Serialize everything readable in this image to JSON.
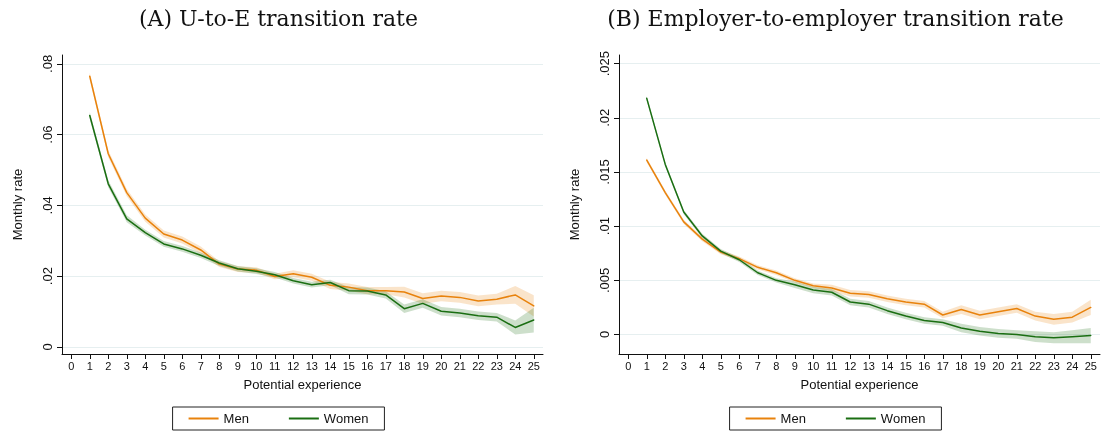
{
  "chart_data": [
    {
      "type": "line",
      "title": "(A) U-to-E transition rate",
      "xlabel": "Potential experience",
      "ylabel": "Monthly rate",
      "x": [
        1,
        2,
        3,
        4,
        5,
        6,
        7,
        8,
        9,
        10,
        11,
        12,
        13,
        14,
        15,
        16,
        17,
        18,
        19,
        20,
        21,
        22,
        23,
        24,
        25
      ],
      "series": [
        {
          "name": "Men",
          "color": "#e8820c",
          "values": [
            0.0765,
            0.0546,
            0.0436,
            0.0364,
            0.0319,
            0.0302,
            0.0274,
            0.0234,
            0.022,
            0.0217,
            0.0199,
            0.0207,
            0.0197,
            0.0174,
            0.0169,
            0.0159,
            0.0159,
            0.0155,
            0.0137,
            0.0144,
            0.014,
            0.013,
            0.0135,
            0.0147,
            0.0116
          ],
          "lower": [
            0.0755,
            0.0536,
            0.0426,
            0.0354,
            0.0309,
            0.0292,
            0.0264,
            0.0226,
            0.0212,
            0.0209,
            0.0191,
            0.0197,
            0.0187,
            0.0164,
            0.0159,
            0.0149,
            0.0149,
            0.014,
            0.0122,
            0.0129,
            0.0125,
            0.0115,
            0.012,
            0.0122,
            0.0086
          ],
          "upper": [
            0.0775,
            0.0556,
            0.0446,
            0.0374,
            0.0329,
            0.0312,
            0.0284,
            0.0242,
            0.0228,
            0.0225,
            0.0207,
            0.0217,
            0.0207,
            0.0184,
            0.0179,
            0.0169,
            0.0169,
            0.017,
            0.0152,
            0.0159,
            0.0155,
            0.0145,
            0.015,
            0.0172,
            0.0146
          ]
        },
        {
          "name": "Women",
          "color": "#1a6e12",
          "values": [
            0.0654,
            0.0461,
            0.0362,
            0.0323,
            0.0291,
            0.0277,
            0.0259,
            0.0237,
            0.0221,
            0.0214,
            0.0204,
            0.0187,
            0.0176,
            0.0182,
            0.0159,
            0.0158,
            0.0147,
            0.0108,
            0.0123,
            0.0101,
            0.0096,
            0.0088,
            0.0084,
            0.0055,
            0.0076
          ],
          "lower": [
            0.0644,
            0.0451,
            0.0352,
            0.0315,
            0.0283,
            0.0269,
            0.0251,
            0.0229,
            0.0213,
            0.0206,
            0.0196,
            0.0179,
            0.0168,
            0.0174,
            0.0149,
            0.0148,
            0.0137,
            0.0096,
            0.0111,
            0.0089,
            0.0084,
            0.0076,
            0.0072,
            0.0035,
            0.0041
          ],
          "upper": [
            0.0664,
            0.0471,
            0.0372,
            0.0331,
            0.0299,
            0.0285,
            0.0267,
            0.0245,
            0.0229,
            0.0222,
            0.0212,
            0.0195,
            0.0184,
            0.019,
            0.0169,
            0.0168,
            0.0157,
            0.012,
            0.0135,
            0.0113,
            0.0108,
            0.01,
            0.0096,
            0.0075,
            0.0111
          ]
        }
      ],
      "xlim": [
        -0.5,
        25.5
      ],
      "xticks": [
        0,
        1,
        2,
        3,
        4,
        5,
        6,
        7,
        8,
        9,
        10,
        11,
        12,
        13,
        14,
        15,
        16,
        17,
        18,
        19,
        20,
        21,
        22,
        23,
        24,
        25
      ],
      "ylim": [
        -0.002,
        0.0825
      ],
      "yticks": [
        0,
        {
          "value": 0.02,
          "label": ".02"
        },
        {
          "value": 0.04,
          "label": ".04"
        },
        {
          "value": 0.06,
          "label": ".06"
        },
        {
          "value": 0.08,
          "label": ".08"
        }
      ],
      "grid": "y",
      "legend": "bottom",
      "marker": "none",
      "line_style": "solid"
    },
    {
      "type": "line",
      "title": "(B) Employer-to-employer transition rate",
      "xlabel": "Potential experience",
      "ylabel": "Monthly rate",
      "x": [
        1,
        2,
        3,
        4,
        5,
        6,
        7,
        8,
        9,
        10,
        11,
        12,
        13,
        14,
        15,
        16,
        17,
        18,
        19,
        20,
        21,
        22,
        23,
        24,
        25
      ],
      "series": [
        {
          "name": "Men",
          "color": "#e8820c",
          "values": [
            0.0161,
            0.0131,
            0.0104,
            0.0088,
            0.0076,
            0.007,
            0.0062,
            0.0057,
            0.005,
            0.0045,
            0.0043,
            0.0038,
            0.0037,
            0.0033,
            0.003,
            0.0028,
            0.0018,
            0.0023,
            0.0018,
            0.0021,
            0.0024,
            0.0017,
            0.0014,
            0.0016,
            0.0025
          ],
          "lower": [
            0.0159,
            0.0129,
            0.0102,
            0.0086,
            0.0074,
            0.0068,
            0.006,
            0.0055,
            0.0048,
            0.0043,
            0.004,
            0.0035,
            0.0034,
            0.003,
            0.0027,
            0.0025,
            0.0015,
            0.0019,
            0.0014,
            0.0017,
            0.002,
            0.0013,
            0.0009,
            0.0011,
            0.0018
          ],
          "upper": [
            0.0163,
            0.0133,
            0.0106,
            0.009,
            0.0078,
            0.0072,
            0.0064,
            0.0059,
            0.0052,
            0.0047,
            0.0046,
            0.0041,
            0.004,
            0.0036,
            0.0033,
            0.0031,
            0.0021,
            0.0027,
            0.0022,
            0.0025,
            0.0028,
            0.0021,
            0.0019,
            0.0021,
            0.0032
          ]
        },
        {
          "name": "Women",
          "color": "#1a6e12",
          "values": [
            0.0218,
            0.0157,
            0.0113,
            0.0091,
            0.0077,
            0.0069,
            0.0057,
            0.005,
            0.0046,
            0.0041,
            0.0039,
            0.003,
            0.0028,
            0.0022,
            0.0017,
            0.0013,
            0.0011,
            0.0006,
            0.0003,
            0.0001,
            0.0,
            -0.0002,
            -0.0003,
            -0.0002,
            -0.0001
          ],
          "lower": [
            0.0216,
            0.0155,
            0.0111,
            0.0089,
            0.0075,
            0.0067,
            0.0055,
            0.0048,
            0.0043,
            0.0038,
            0.0036,
            0.0027,
            0.0025,
            0.0019,
            0.0014,
            0.001,
            0.0008,
            0.0002,
            -0.0001,
            -0.0003,
            -0.0004,
            -0.0007,
            -0.0008,
            -0.0008,
            -0.0008
          ],
          "upper": [
            0.022,
            0.0159,
            0.0115,
            0.0093,
            0.0079,
            0.0071,
            0.0059,
            0.0052,
            0.0049,
            0.0044,
            0.0042,
            0.0033,
            0.0031,
            0.0025,
            0.002,
            0.0016,
            0.0014,
            0.001,
            0.0007,
            0.0005,
            0.0004,
            0.0003,
            0.0002,
            0.0004,
            0.0006
          ]
        }
      ],
      "xlim": [
        -0.5,
        25.5
      ],
      "xticks": [
        0,
        1,
        2,
        3,
        4,
        5,
        6,
        7,
        8,
        9,
        10,
        11,
        12,
        13,
        14,
        15,
        16,
        17,
        18,
        19,
        20,
        21,
        22,
        23,
        24,
        25
      ],
      "ylim": [
        -0.0018,
        0.0258
      ],
      "yticks": [
        0,
        {
          "value": 0.005,
          "label": ".005"
        },
        {
          "value": 0.01,
          "label": ".01"
        },
        {
          "value": 0.015,
          "label": ".015"
        },
        {
          "value": 0.02,
          "label": ".02"
        },
        {
          "value": 0.025,
          "label": ".025"
        }
      ],
      "grid": "y",
      "legend": "bottom",
      "marker": "none",
      "line_style": "solid"
    }
  ]
}
